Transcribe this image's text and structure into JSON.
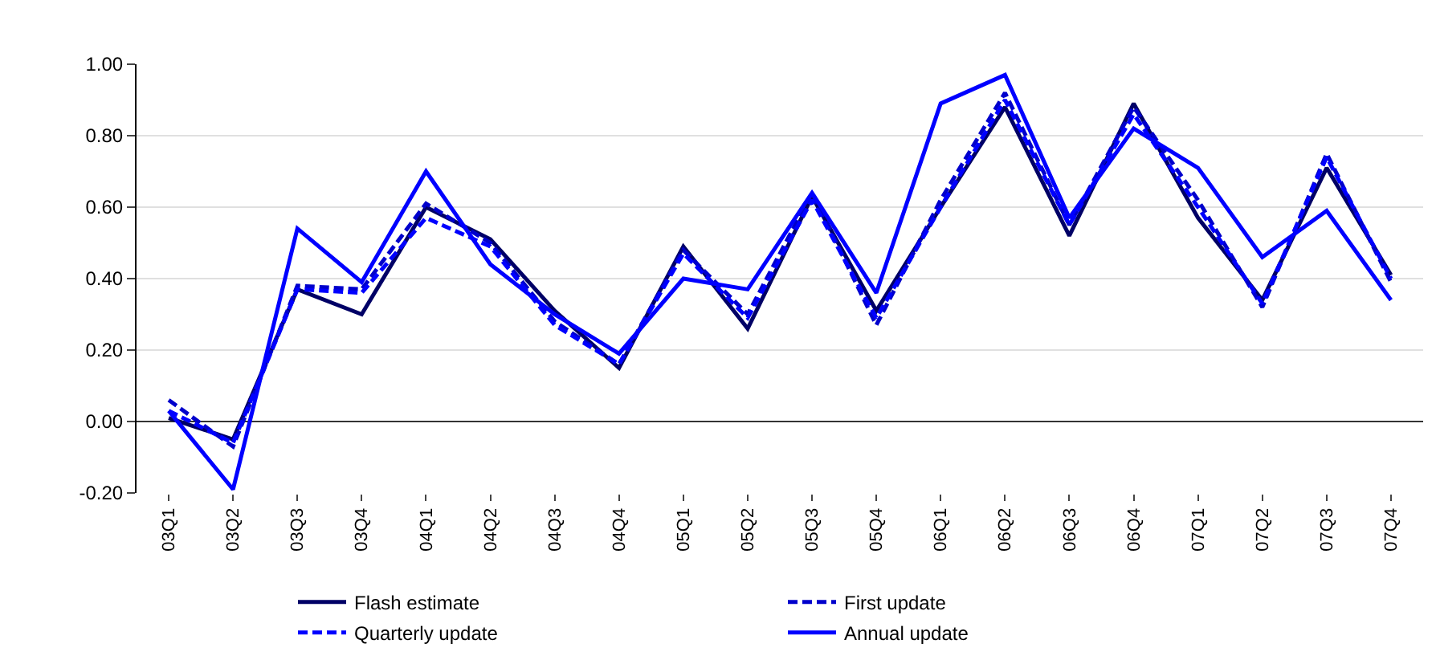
{
  "chart_data": {
    "type": "line",
    "categories": [
      "03Q1",
      "03Q2",
      "03Q3",
      "03Q4",
      "04Q1",
      "04Q2",
      "04Q3",
      "04Q4",
      "05Q1",
      "05Q2",
      "05Q3",
      "05Q4",
      "06Q1",
      "06Q2",
      "06Q3",
      "06Q4",
      "07Q1",
      "07Q2",
      "07Q3",
      "07Q4"
    ],
    "series": [
      {
        "name": "Flash estimate",
        "color": "#000066",
        "line_style": "solid",
        "values": [
          0.01,
          -0.05,
          0.37,
          0.3,
          0.6,
          0.51,
          0.31,
          0.15,
          0.49,
          0.26,
          0.63,
          0.31,
          0.6,
          0.88,
          0.52,
          0.89,
          0.57,
          0.34,
          0.71,
          0.41
        ]
      },
      {
        "name": "First update",
        "color": "#0000cc",
        "line_style": "dashed",
        "values": [
          0.06,
          -0.07,
          0.38,
          0.37,
          0.61,
          0.5,
          0.28,
          0.16,
          0.48,
          0.3,
          0.64,
          0.27,
          0.62,
          0.92,
          0.55,
          0.88,
          0.62,
          0.32,
          0.75,
          0.39
        ]
      },
      {
        "name": "Quarterly update",
        "color": "#0000ff",
        "line_style": "dashed",
        "values": [
          0.03,
          -0.06,
          0.37,
          0.36,
          0.57,
          0.49,
          0.27,
          0.16,
          0.47,
          0.29,
          0.62,
          0.29,
          0.6,
          0.9,
          0.55,
          0.86,
          0.6,
          0.33,
          0.74,
          0.4
        ]
      },
      {
        "name": "Annual update",
        "color": "#0000ff",
        "line_style": "solid",
        "values": [
          0.03,
          -0.19,
          0.54,
          0.39,
          0.7,
          0.44,
          0.3,
          0.19,
          0.4,
          0.37,
          0.64,
          0.36,
          0.89,
          0.97,
          0.57,
          0.82,
          0.71,
          0.46,
          0.59,
          0.34
        ]
      }
    ],
    "ylim": [
      -0.2,
      1.0
    ],
    "yticks": [
      {
        "value": -0.2,
        "label": "-0.20"
      },
      {
        "value": 0,
        "label": "0.00"
      },
      {
        "value": 0.2,
        "label": "0.20"
      },
      {
        "value": 0.4,
        "label": "0.40"
      },
      {
        "value": 0.6,
        "label": "0.60"
      },
      {
        "value": 0.8,
        "label": "0.80"
      },
      {
        "value": 1.0,
        "label": "1.00"
      }
    ],
    "grid": "y",
    "legend": "bottom",
    "marker": "none"
  }
}
